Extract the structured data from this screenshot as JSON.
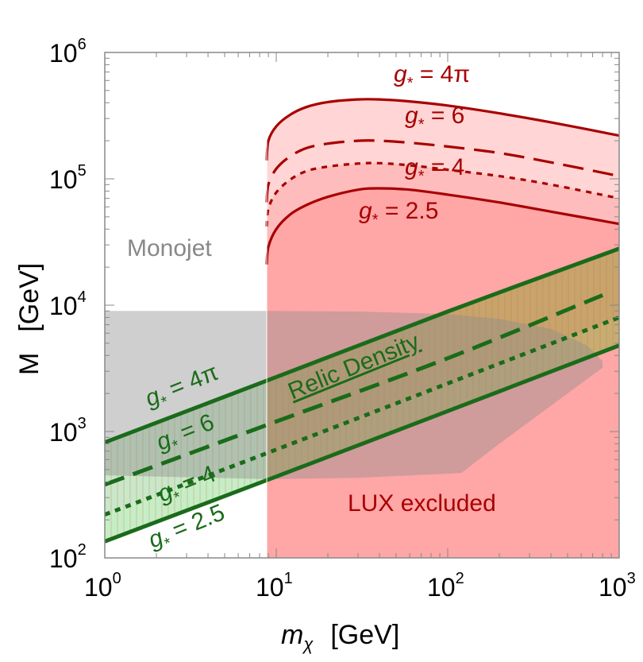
{
  "chart_data": {
    "type": "line",
    "title": "",
    "xlabel": {
      "symbol": "m",
      "subscript": "χ",
      "unit": "[GeV]"
    },
    "ylabel": {
      "symbol": "M",
      "unit": "[GeV]"
    },
    "xscale": "log",
    "yscale": "log",
    "xlim": [
      1,
      1000
    ],
    "ylim": [
      100,
      1000000
    ],
    "x_ticks": [
      {
        "base": "10",
        "exp": "0",
        "value": 1
      },
      {
        "base": "10",
        "exp": "1",
        "value": 10
      },
      {
        "base": "10",
        "exp": "2",
        "value": 100
      },
      {
        "base": "10",
        "exp": "3",
        "value": 1000
      }
    ],
    "y_ticks": [
      {
        "base": "10",
        "exp": "2",
        "value": 100
      },
      {
        "base": "10",
        "exp": "3",
        "value": 1000
      },
      {
        "base": "10",
        "exp": "4",
        "value": 10000
      },
      {
        "base": "10",
        "exp": "5",
        "value": 100000
      },
      {
        "base": "10",
        "exp": "6",
        "value": 1000000
      }
    ],
    "colors": {
      "lux": "#a80000",
      "lux_fill": "#ff8080",
      "lux_fill_light": "#ffd0d0",
      "relic": "#1a6b1a",
      "relic_fill": "#c89a5a",
      "relic_fill_light": "#c6f0c6",
      "monojet": "#808080",
      "monojet_fill": "#8c8c8c"
    },
    "regions": {
      "lux_excluded": {
        "label": "LUX excluded",
        "x_min": 8.8,
        "series_label": "g_* = 4π upper bound",
        "x": [
          8.8,
          9,
          10,
          12,
          15,
          20,
          30,
          40,
          60,
          100,
          200,
          400,
          1000
        ],
        "y": [
          140000,
          200000,
          260000,
          320000,
          370000,
          405000,
          425000,
          425000,
          410000,
          380000,
          330000,
          280000,
          220000
        ]
      },
      "monojet": {
        "label": "Monojet",
        "boundary_x": [
          1,
          8.8,
          30,
          100,
          200,
          400,
          650,
          800,
          800,
          700,
          400,
          200,
          120,
          30,
          8.8,
          1
        ],
        "boundary_y": [
          9000,
          9000,
          8900,
          8500,
          7800,
          6500,
          4800,
          3600,
          3200,
          2800,
          1600,
          800,
          470,
          430,
          420,
          450
        ]
      }
    },
    "series": [
      {
        "name": "lux-gstar-4pi",
        "group": "LUX",
        "label": {
          "g": "g",
          "sub": "*",
          "eq": " = 4π"
        },
        "style": "solid",
        "x": [
          8.8,
          9,
          10,
          12,
          15,
          20,
          30,
          40,
          60,
          100,
          200,
          400,
          1000
        ],
        "y": [
          140000,
          200000,
          260000,
          320000,
          370000,
          405000,
          425000,
          425000,
          410000,
          380000,
          330000,
          280000,
          220000
        ]
      },
      {
        "name": "lux-gstar-6",
        "group": "LUX",
        "label": {
          "g": "g",
          "sub": "*",
          "eq": " = 6"
        },
        "style": "dashed",
        "x": [
          8.8,
          9,
          10,
          12,
          15,
          20,
          30,
          40,
          60,
          100,
          200,
          400,
          1000
        ],
        "y": [
          65000,
          90000,
          120000,
          150000,
          175000,
          190000,
          200000,
          200000,
          193000,
          180000,
          160000,
          135000,
          105000
        ]
      },
      {
        "name": "lux-gstar-4",
        "group": "LUX",
        "label": {
          "g": "g",
          "sub": "*",
          "eq": " = 4"
        },
        "style": "dotted",
        "x": [
          8.8,
          9,
          10,
          12,
          15,
          20,
          30,
          40,
          60,
          100,
          200,
          400,
          1000
        ],
        "y": [
          42000,
          58000,
          78000,
          98000,
          115000,
          125000,
          132000,
          133000,
          128000,
          118000,
          105000,
          90000,
          70000
        ]
      },
      {
        "name": "lux-gstar-2.5",
        "group": "LUX",
        "label": {
          "g": "g",
          "sub": "*",
          "eq": " = 2.5"
        },
        "style": "solid",
        "x": [
          8.8,
          9,
          10,
          12,
          15,
          20,
          30,
          40,
          60,
          100,
          200,
          400,
          1000
        ],
        "y": [
          21000,
          29000,
          40000,
          52000,
          62000,
          72000,
          82000,
          84000,
          82000,
          75000,
          65000,
          55000,
          44000
        ]
      },
      {
        "name": "relic-gstar-4pi",
        "group": "Relic",
        "label": {
          "g": "g",
          "sub": "*",
          "eq": " = 4π"
        },
        "style": "solid",
        "x": [
          1,
          10,
          100,
          1000
        ],
        "y": [
          820,
          2700,
          8900,
          28000
        ]
      },
      {
        "name": "relic-gstar-6",
        "group": "Relic",
        "label": {
          "g": "g",
          "sub": "*",
          "eq": " = 6"
        },
        "style": "dashed",
        "x": [
          1,
          10,
          100,
          800
        ],
        "y": [
          380,
          1200,
          3800,
          12000
        ]
      },
      {
        "name": "relic-gstar-4",
        "group": "Relic",
        "label": {
          "g": "g",
          "sub": "*",
          "eq": " = 4"
        },
        "style": "dotted",
        "x": [
          1,
          10,
          100,
          1000
        ],
        "y": [
          220,
          720,
          2400,
          8000
        ]
      },
      {
        "name": "relic-gstar-2.5",
        "group": "Relic",
        "label": {
          "g": "g",
          "sub": "*",
          "eq": " = 2.5"
        },
        "style": "solid",
        "x": [
          1,
          10,
          100,
          1000
        ],
        "y": [
          135,
          440,
          1450,
          4800
        ]
      }
    ],
    "annotations": {
      "monojet": "Monojet",
      "lux_excluded": "LUX excluded",
      "relic_density": "Relic Density"
    }
  }
}
